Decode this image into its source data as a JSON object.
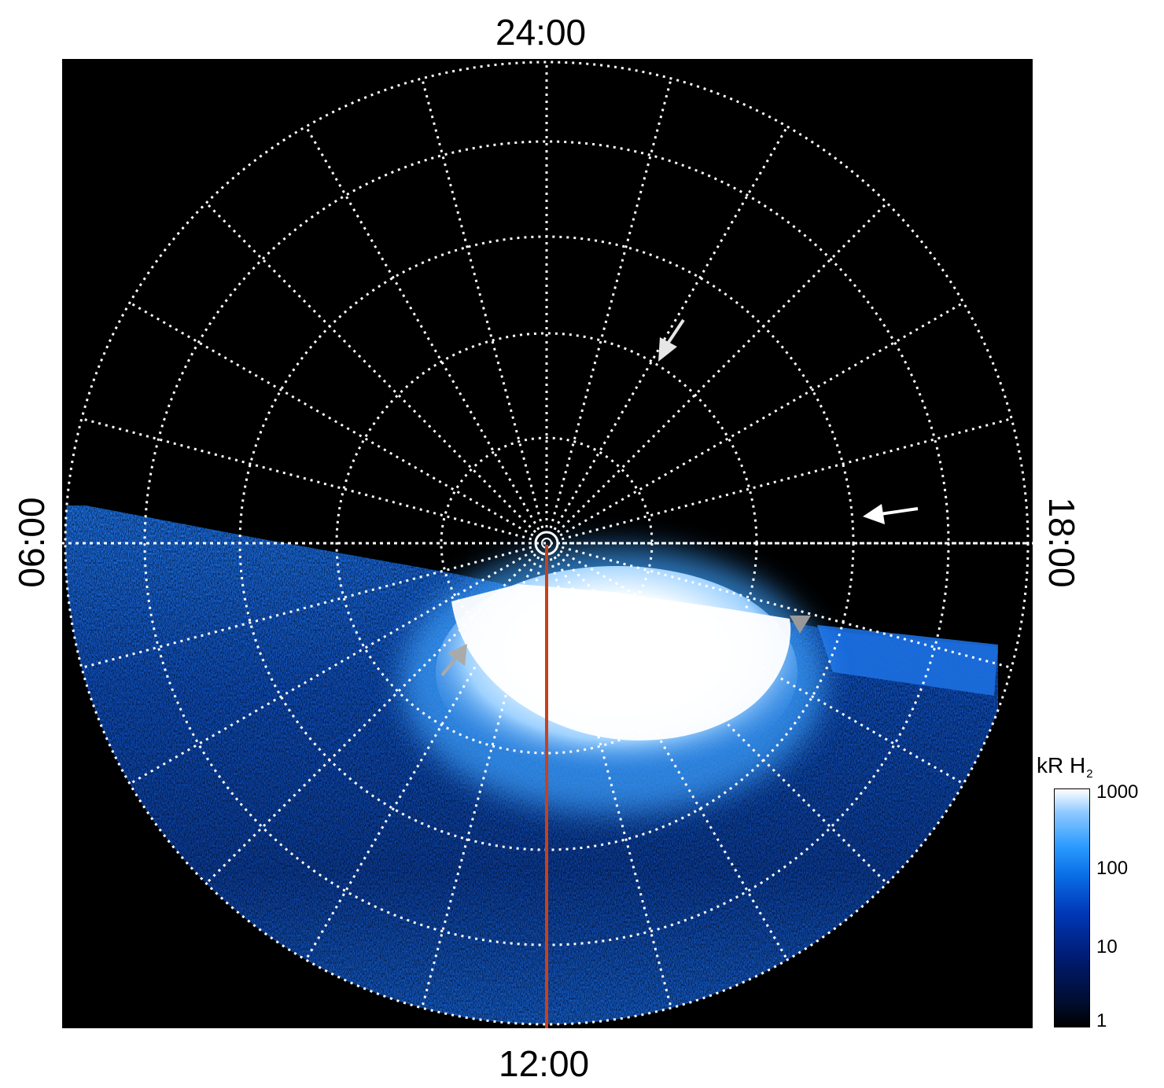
{
  "local_time_labels": {
    "top": "24:00",
    "bottom": "12:00",
    "left": "06:00",
    "right": "18:00"
  },
  "colorbar": {
    "title": "kR H",
    "title_subscript": "2",
    "scale": "log",
    "ticks": [
      "1000",
      "100",
      "10",
      "1"
    ],
    "colors": [
      "#000000",
      "#001a6e",
      "#0a6fe6",
      "#8cc8ff",
      "#ffffff"
    ]
  },
  "grid": {
    "style": "dotted",
    "color": "#ffffff",
    "meridian_count": 24,
    "latitude_ring_count": 5
  },
  "meridian_line": {
    "color": "#c8401a"
  },
  "arrows": [
    {
      "name": "white-arrow-upper",
      "color": "#e6e6e6"
    },
    {
      "name": "white-arrow-right",
      "color": "#ffffff"
    },
    {
      "name": "gray-arrow-left",
      "color": "#aaaaaa"
    },
    {
      "name": "gray-arrow-right",
      "color": "#999999"
    }
  ]
}
